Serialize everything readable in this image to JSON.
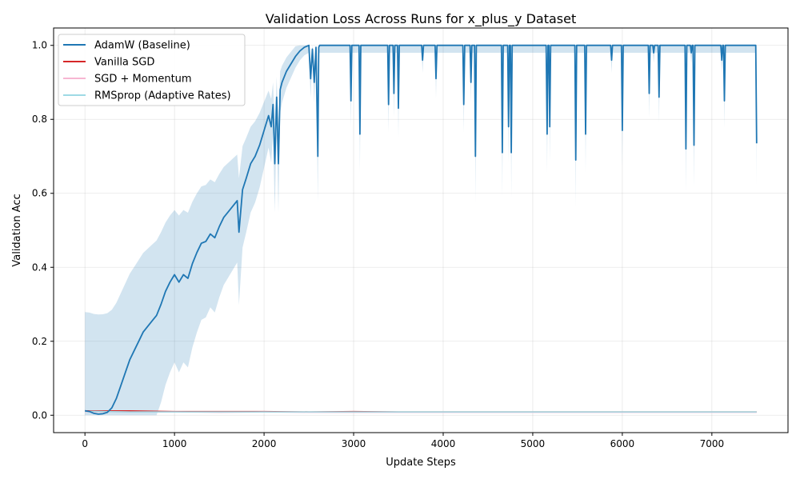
{
  "chart_data": {
    "type": "line",
    "title": "Validation Loss Across Runs for x_plus_y Dataset",
    "xlabel": "Update Steps",
    "ylabel": "Validation Acc",
    "xlim": [
      -350,
      7850
    ],
    "ylim": [
      -0.047,
      1.047
    ],
    "xticks": [
      0,
      1000,
      2000,
      3000,
      4000,
      5000,
      6000,
      7000
    ],
    "yticks": [
      0.0,
      0.2,
      0.4,
      0.6,
      0.8,
      1.0
    ],
    "grid": true,
    "legend_position": "top-left",
    "series": [
      {
        "name": "AdamW (Baseline)",
        "color": "#1f77b4",
        "band_color": "#1f77b4",
        "x": [
          0,
          50,
          100,
          150,
          200,
          250,
          300,
          350,
          400,
          450,
          500,
          550,
          600,
          650,
          700,
          750,
          800,
          850,
          900,
          950,
          1000,
          1050,
          1100,
          1150,
          1200,
          1250,
          1300,
          1350,
          1400,
          1450,
          1500,
          1550,
          1600,
          1650,
          1700,
          1720,
          1760,
          1800,
          1850,
          1900,
          1950,
          2000,
          2050,
          2080,
          2100,
          2120,
          2140,
          2160,
          2180,
          2200,
          2250,
          2300,
          2350,
          2400,
          2450,
          2500,
          2520,
          2540,
          2560,
          2580,
          2600,
          2610,
          2620,
          2650,
          2700,
          2960,
          2970,
          2980,
          3060,
          3070,
          3080,
          3380,
          3390,
          3400,
          3440,
          3450,
          3460,
          3490,
          3500,
          3510,
          3760,
          3770,
          3780,
          3910,
          3920,
          3930,
          4220,
          4230,
          4240,
          4300,
          4310,
          4320,
          4350,
          4360,
          4370,
          4650,
          4660,
          4670,
          4720,
          4730,
          4740,
          4750,
          4760,
          4770,
          5150,
          5160,
          5170,
          5180,
          5190,
          5200,
          5470,
          5480,
          5490,
          5580,
          5590,
          5600,
          5870,
          5880,
          5890,
          5990,
          6000,
          6010,
          6290,
          6300,
          6310,
          6340,
          6350,
          6360,
          6400,
          6410,
          6420,
          6700,
          6710,
          6720,
          6760,
          6770,
          6780,
          6790,
          6800,
          6810,
          7100,
          7110,
          7120,
          7130,
          7140,
          7150,
          7480,
          7490,
          7500
        ],
        "y": [
          0.012,
          0.01,
          0.005,
          0.003,
          0.004,
          0.008,
          0.02,
          0.045,
          0.08,
          0.115,
          0.15,
          0.175,
          0.2,
          0.225,
          0.24,
          0.255,
          0.27,
          0.3,
          0.335,
          0.36,
          0.38,
          0.36,
          0.38,
          0.37,
          0.41,
          0.44,
          0.465,
          0.47,
          0.49,
          0.48,
          0.51,
          0.535,
          0.55,
          0.565,
          0.58,
          0.495,
          0.61,
          0.64,
          0.68,
          0.7,
          0.73,
          0.77,
          0.81,
          0.78,
          0.84,
          0.68,
          0.86,
          0.68,
          0.88,
          0.9,
          0.93,
          0.95,
          0.97,
          0.985,
          0.995,
          1.0,
          0.91,
          0.99,
          0.9,
          0.995,
          0.7,
          0.995,
          1.0,
          1.0,
          1.0,
          1.0,
          0.85,
          1.0,
          1.0,
          0.76,
          1.0,
          1.0,
          0.84,
          1.0,
          1.0,
          0.87,
          1.0,
          1.0,
          0.83,
          1.0,
          1.0,
          0.96,
          1.0,
          1.0,
          0.91,
          1.0,
          1.0,
          0.84,
          1.0,
          1.0,
          0.9,
          1.0,
          1.0,
          0.7,
          1.0,
          1.0,
          0.71,
          1.0,
          1.0,
          0.78,
          1.0,
          1.0,
          0.71,
          1.0,
          1.0,
          0.76,
          1.0,
          1.0,
          0.78,
          1.0,
          1.0,
          0.69,
          1.0,
          1.0,
          0.76,
          1.0,
          1.0,
          0.96,
          1.0,
          1.0,
          0.77,
          1.0,
          1.0,
          0.87,
          1.0,
          1.0,
          0.98,
          1.0,
          1.0,
          0.86,
          1.0,
          1.0,
          0.72,
          1.0,
          1.0,
          0.98,
          1.0,
          1.0,
          0.73,
          1.0,
          1.0,
          0.96,
          1.0,
          1.0,
          0.85,
          1.0,
          1.0,
          1.0,
          0.735
        ]
      },
      {
        "name": "Vanilla SGD",
        "color": "#d62728",
        "x": [
          0,
          500,
          1000,
          1500,
          2000,
          2500,
          3000,
          3500,
          4000,
          4500,
          5000,
          5500,
          6000,
          6500,
          7000,
          7500
        ],
        "y": [
          0.012,
          0.012,
          0.01,
          0.01,
          0.01,
          0.009,
          0.01,
          0.009,
          0.009,
          0.009,
          0.009,
          0.009,
          0.009,
          0.009,
          0.009,
          0.009
        ]
      },
      {
        "name": "SGD + Momentum",
        "color": "#f7b6d2",
        "x": [
          0,
          500,
          1000,
          1500,
          2000,
          2500,
          3000,
          3500,
          4000,
          4500,
          5000,
          5500,
          6000,
          6500,
          7000,
          7500
        ],
        "y": [
          0.01,
          0.009,
          0.009,
          0.008,
          0.009,
          0.008,
          0.008,
          0.008,
          0.008,
          0.008,
          0.008,
          0.008,
          0.008,
          0.008,
          0.008,
          0.008
        ]
      },
      {
        "name": "RMSprop (Adaptive Rates)",
        "color": "#9edae5",
        "x": [
          0,
          500,
          1000,
          1500,
          2000,
          2500,
          3000,
          3500,
          4000,
          4500,
          5000,
          5500,
          6000,
          6500,
          7000,
          7500
        ],
        "y": [
          0.011,
          0.009,
          0.009,
          0.009,
          0.009,
          0.009,
          0.009,
          0.009,
          0.009,
          0.009,
          0.009,
          0.009,
          0.009,
          0.009,
          0.009,
          0.009
        ]
      }
    ]
  }
}
